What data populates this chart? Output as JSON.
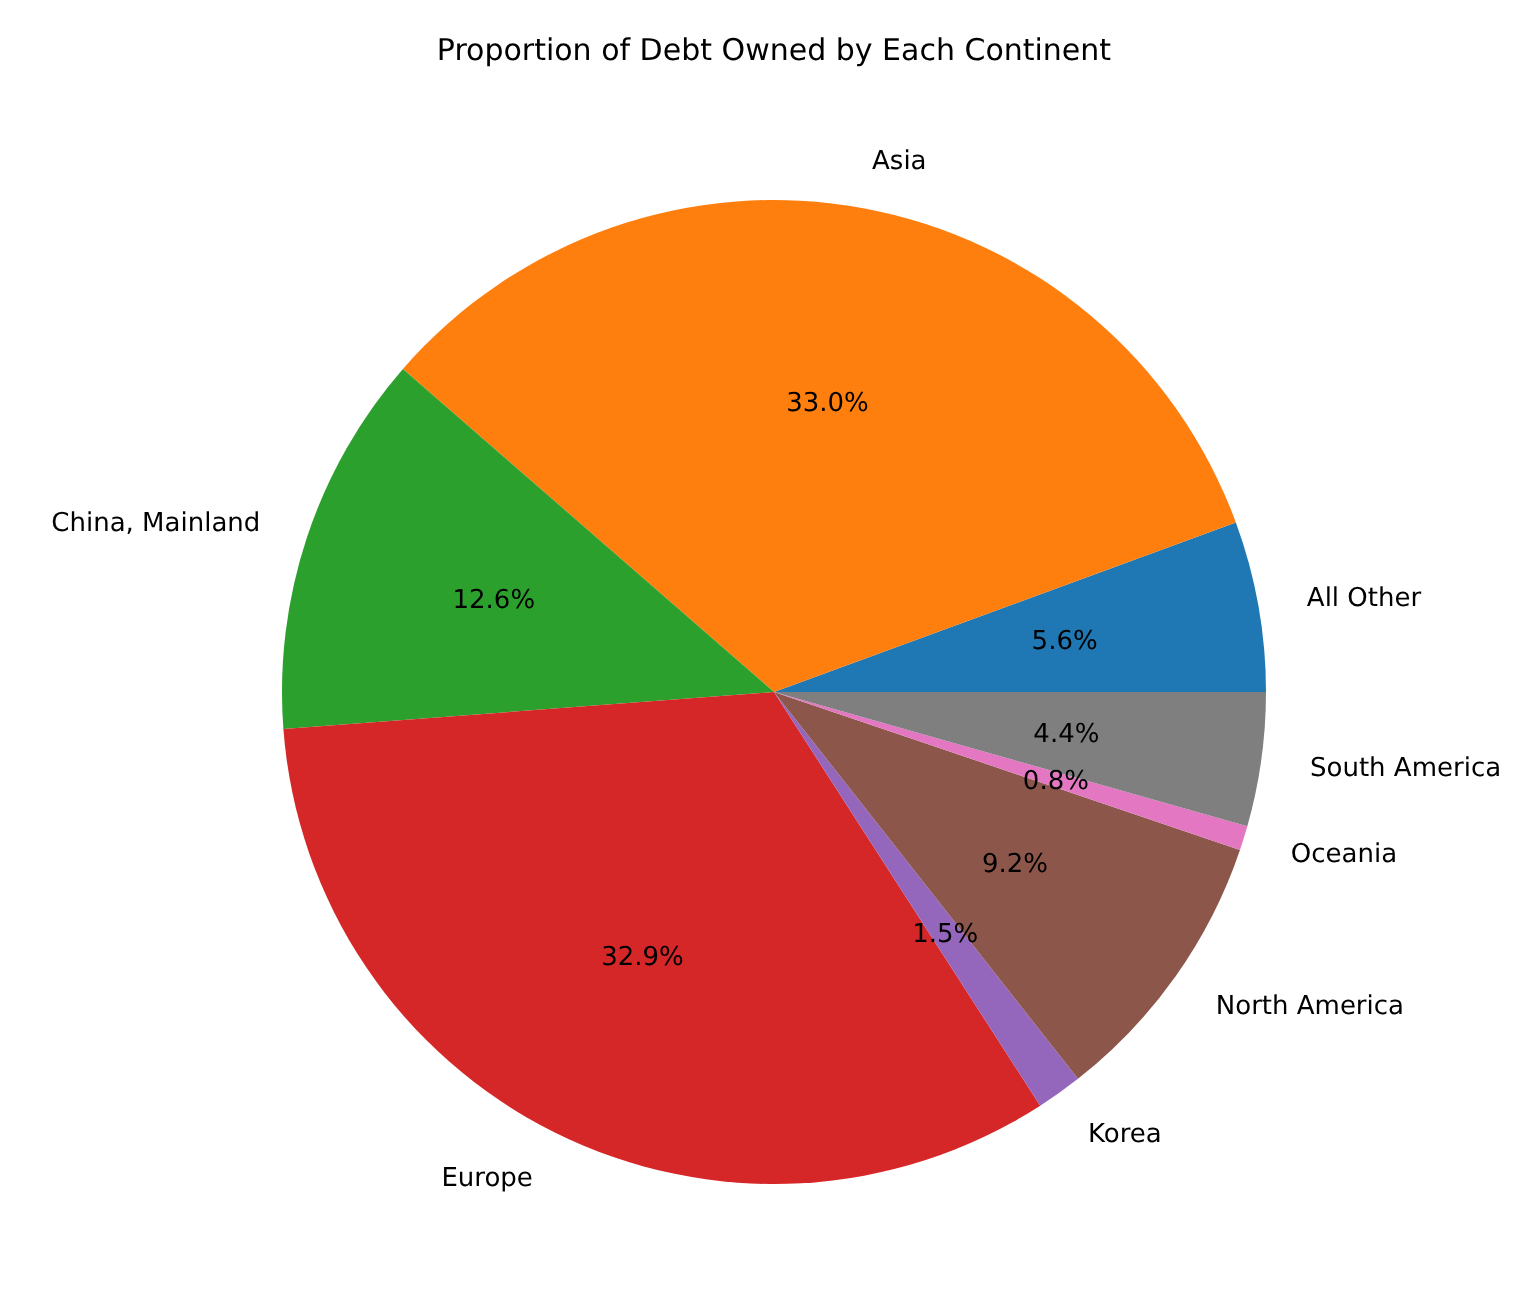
{
  "chart_data": {
    "type": "pie",
    "title": "Proportion of Debt Owned by Each Continent",
    "categories": [
      "All Other",
      "Asia",
      "China, Mainland",
      "Europe",
      "Korea",
      "North America",
      "Oceania",
      "South America"
    ],
    "values": [
      5.6,
      33.0,
      12.6,
      32.9,
      1.5,
      9.2,
      0.8,
      4.4
    ],
    "value_labels": [
      "5.6%",
      "33.0%",
      "12.6%",
      "32.9%",
      "1.5%",
      "9.2%",
      "0.8%",
      "4.4%"
    ],
    "colors": [
      "#1f77b4",
      "#ff7f0e",
      "#2ca02c",
      "#d62728",
      "#9467bd",
      "#8c564b",
      "#e377c2",
      "#7f7f7f"
    ]
  }
}
